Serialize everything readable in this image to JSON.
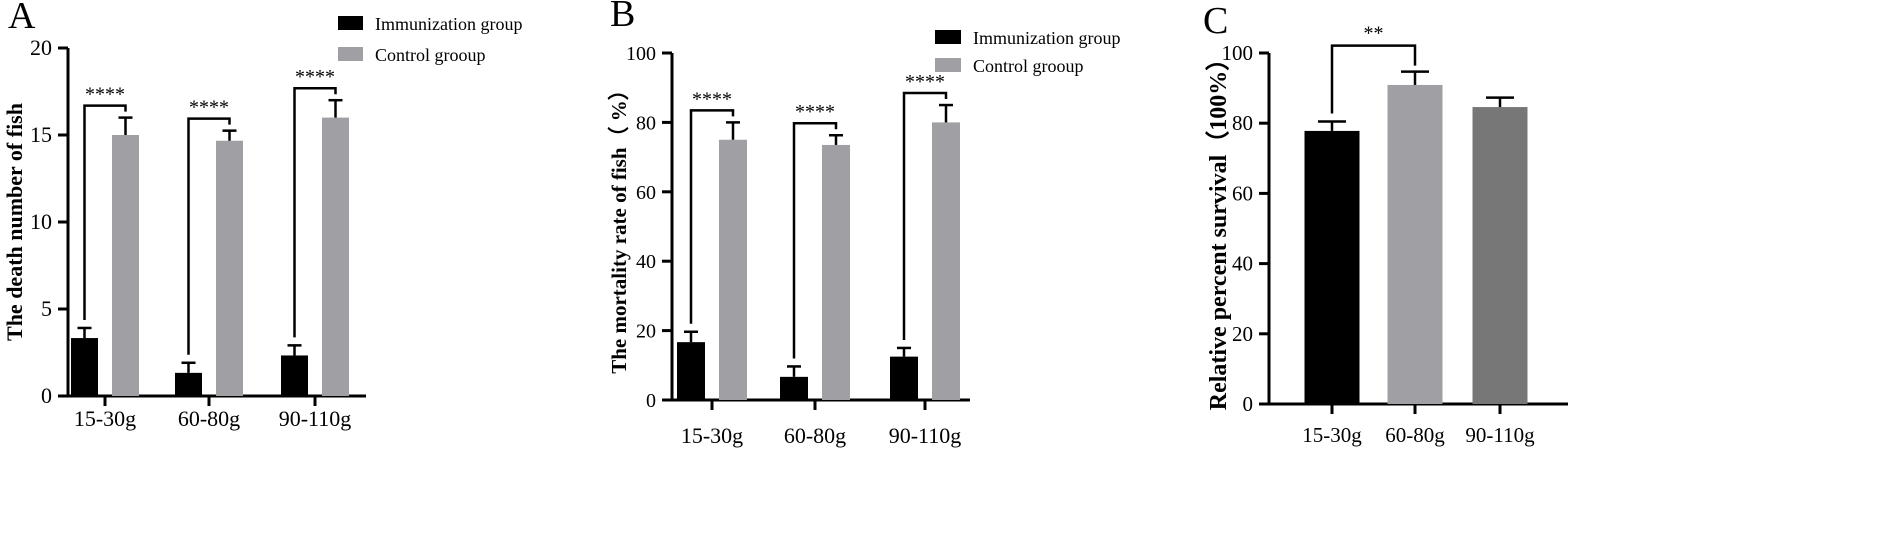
{
  "chart_data": [
    {
      "panel": "A",
      "type": "bar",
      "title": "",
      "ylabel": "The death number of fish",
      "xlabel": "",
      "ylim": [
        0,
        20
      ],
      "yticks": [
        0,
        5,
        10,
        15,
        20
      ],
      "categories": [
        "15-30g",
        "60-80g",
        "90-110g"
      ],
      "series": [
        {
          "name": "Immunization group",
          "color": "#000000",
          "values": [
            3.33,
            1.33,
            2.33
          ],
          "errors": [
            0.58,
            0.58,
            0.58
          ]
        },
        {
          "name": "Control grooup",
          "color": "#a0a0a4",
          "values": [
            15.0,
            14.67,
            16.0
          ],
          "errors": [
            1.0,
            0.58,
            1.0
          ]
        }
      ],
      "significance": [
        "****",
        "****",
        "****"
      ],
      "legend": "top-right"
    },
    {
      "panel": "B",
      "type": "bar",
      "title": "",
      "ylabel": "The mortality rate of fish（ %）",
      "xlabel": "",
      "ylim": [
        0,
        100
      ],
      "yticks": [
        0,
        20,
        40,
        60,
        80,
        100
      ],
      "categories": [
        "15-30g",
        "60-80g",
        "90-110g"
      ],
      "series": [
        {
          "name": "Immunization group",
          "color": "#000000",
          "values": [
            16.67,
            6.67,
            12.5
          ],
          "errors": [
            3.0,
            3.0,
            2.5
          ]
        },
        {
          "name": "Control grooup",
          "color": "#a0a0a4",
          "values": [
            75.0,
            73.5,
            80.0
          ],
          "errors": [
            5.0,
            2.8,
            5.0
          ]
        }
      ],
      "significance": [
        "****",
        "****",
        "****"
      ],
      "legend": "top-right"
    },
    {
      "panel": "C",
      "type": "bar",
      "title": "",
      "ylabel": "Relative percent survival（100%）",
      "xlabel": "",
      "ylim": [
        0,
        100
      ],
      "yticks": [
        0,
        20,
        40,
        60,
        80,
        100
      ],
      "categories": [
        "15-30g",
        "60-80g",
        "90-110g"
      ],
      "series": [
        {
          "name": "Relative percent survival",
          "colors": [
            "#000000",
            "#a0a0a4",
            "#777777"
          ],
          "values": [
            77.8,
            90.9,
            84.6
          ],
          "errors": [
            2.7,
            3.8,
            2.7
          ]
        }
      ],
      "significance": [
        {
          "from": "15-30g",
          "to": "60-80g",
          "label": "**"
        }
      ]
    }
  ]
}
